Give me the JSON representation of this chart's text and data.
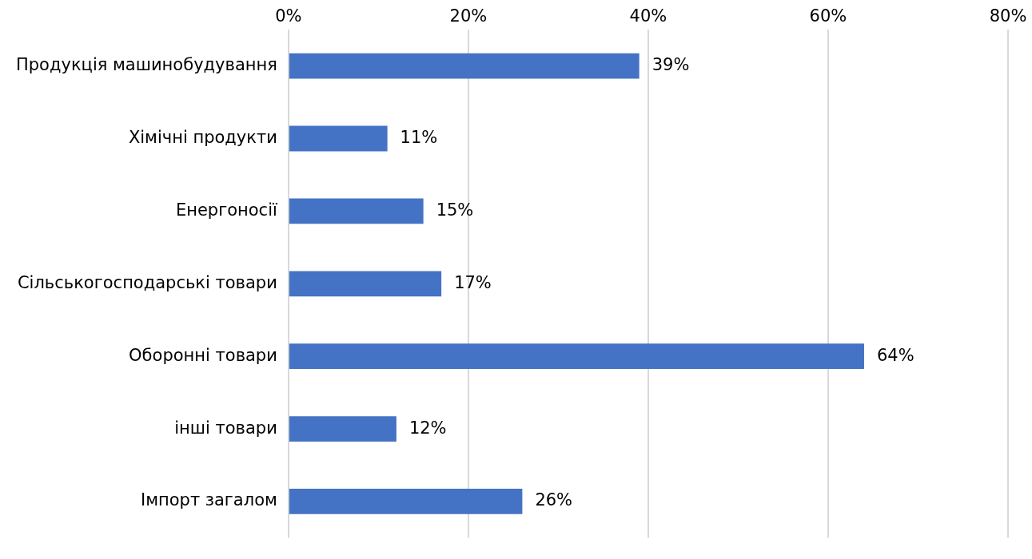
{
  "chart_data": {
    "type": "bar",
    "orientation": "horizontal",
    "categories": [
      "Продукція машинобудування",
      "Хімічні продукти",
      "Енергоносії",
      "Сільськогосподарські товари",
      "Оборонні товари",
      "інші товари",
      "Імпорт загалом"
    ],
    "values": [
      39,
      11,
      15,
      17,
      64,
      12,
      26
    ],
    "value_labels": [
      "39%",
      "11%",
      "15%",
      "17%",
      "64%",
      "12%",
      "26%"
    ],
    "color": "#4472c4",
    "xlim": [
      0,
      80
    ],
    "xticks": [
      {
        "value": 0,
        "label": "0%"
      },
      {
        "value": 20,
        "label": "20%"
      },
      {
        "value": 40,
        "label": "40%"
      },
      {
        "value": 60,
        "label": "60%"
      },
      {
        "value": 80,
        "label": "80%"
      }
    ],
    "grid": "x"
  }
}
